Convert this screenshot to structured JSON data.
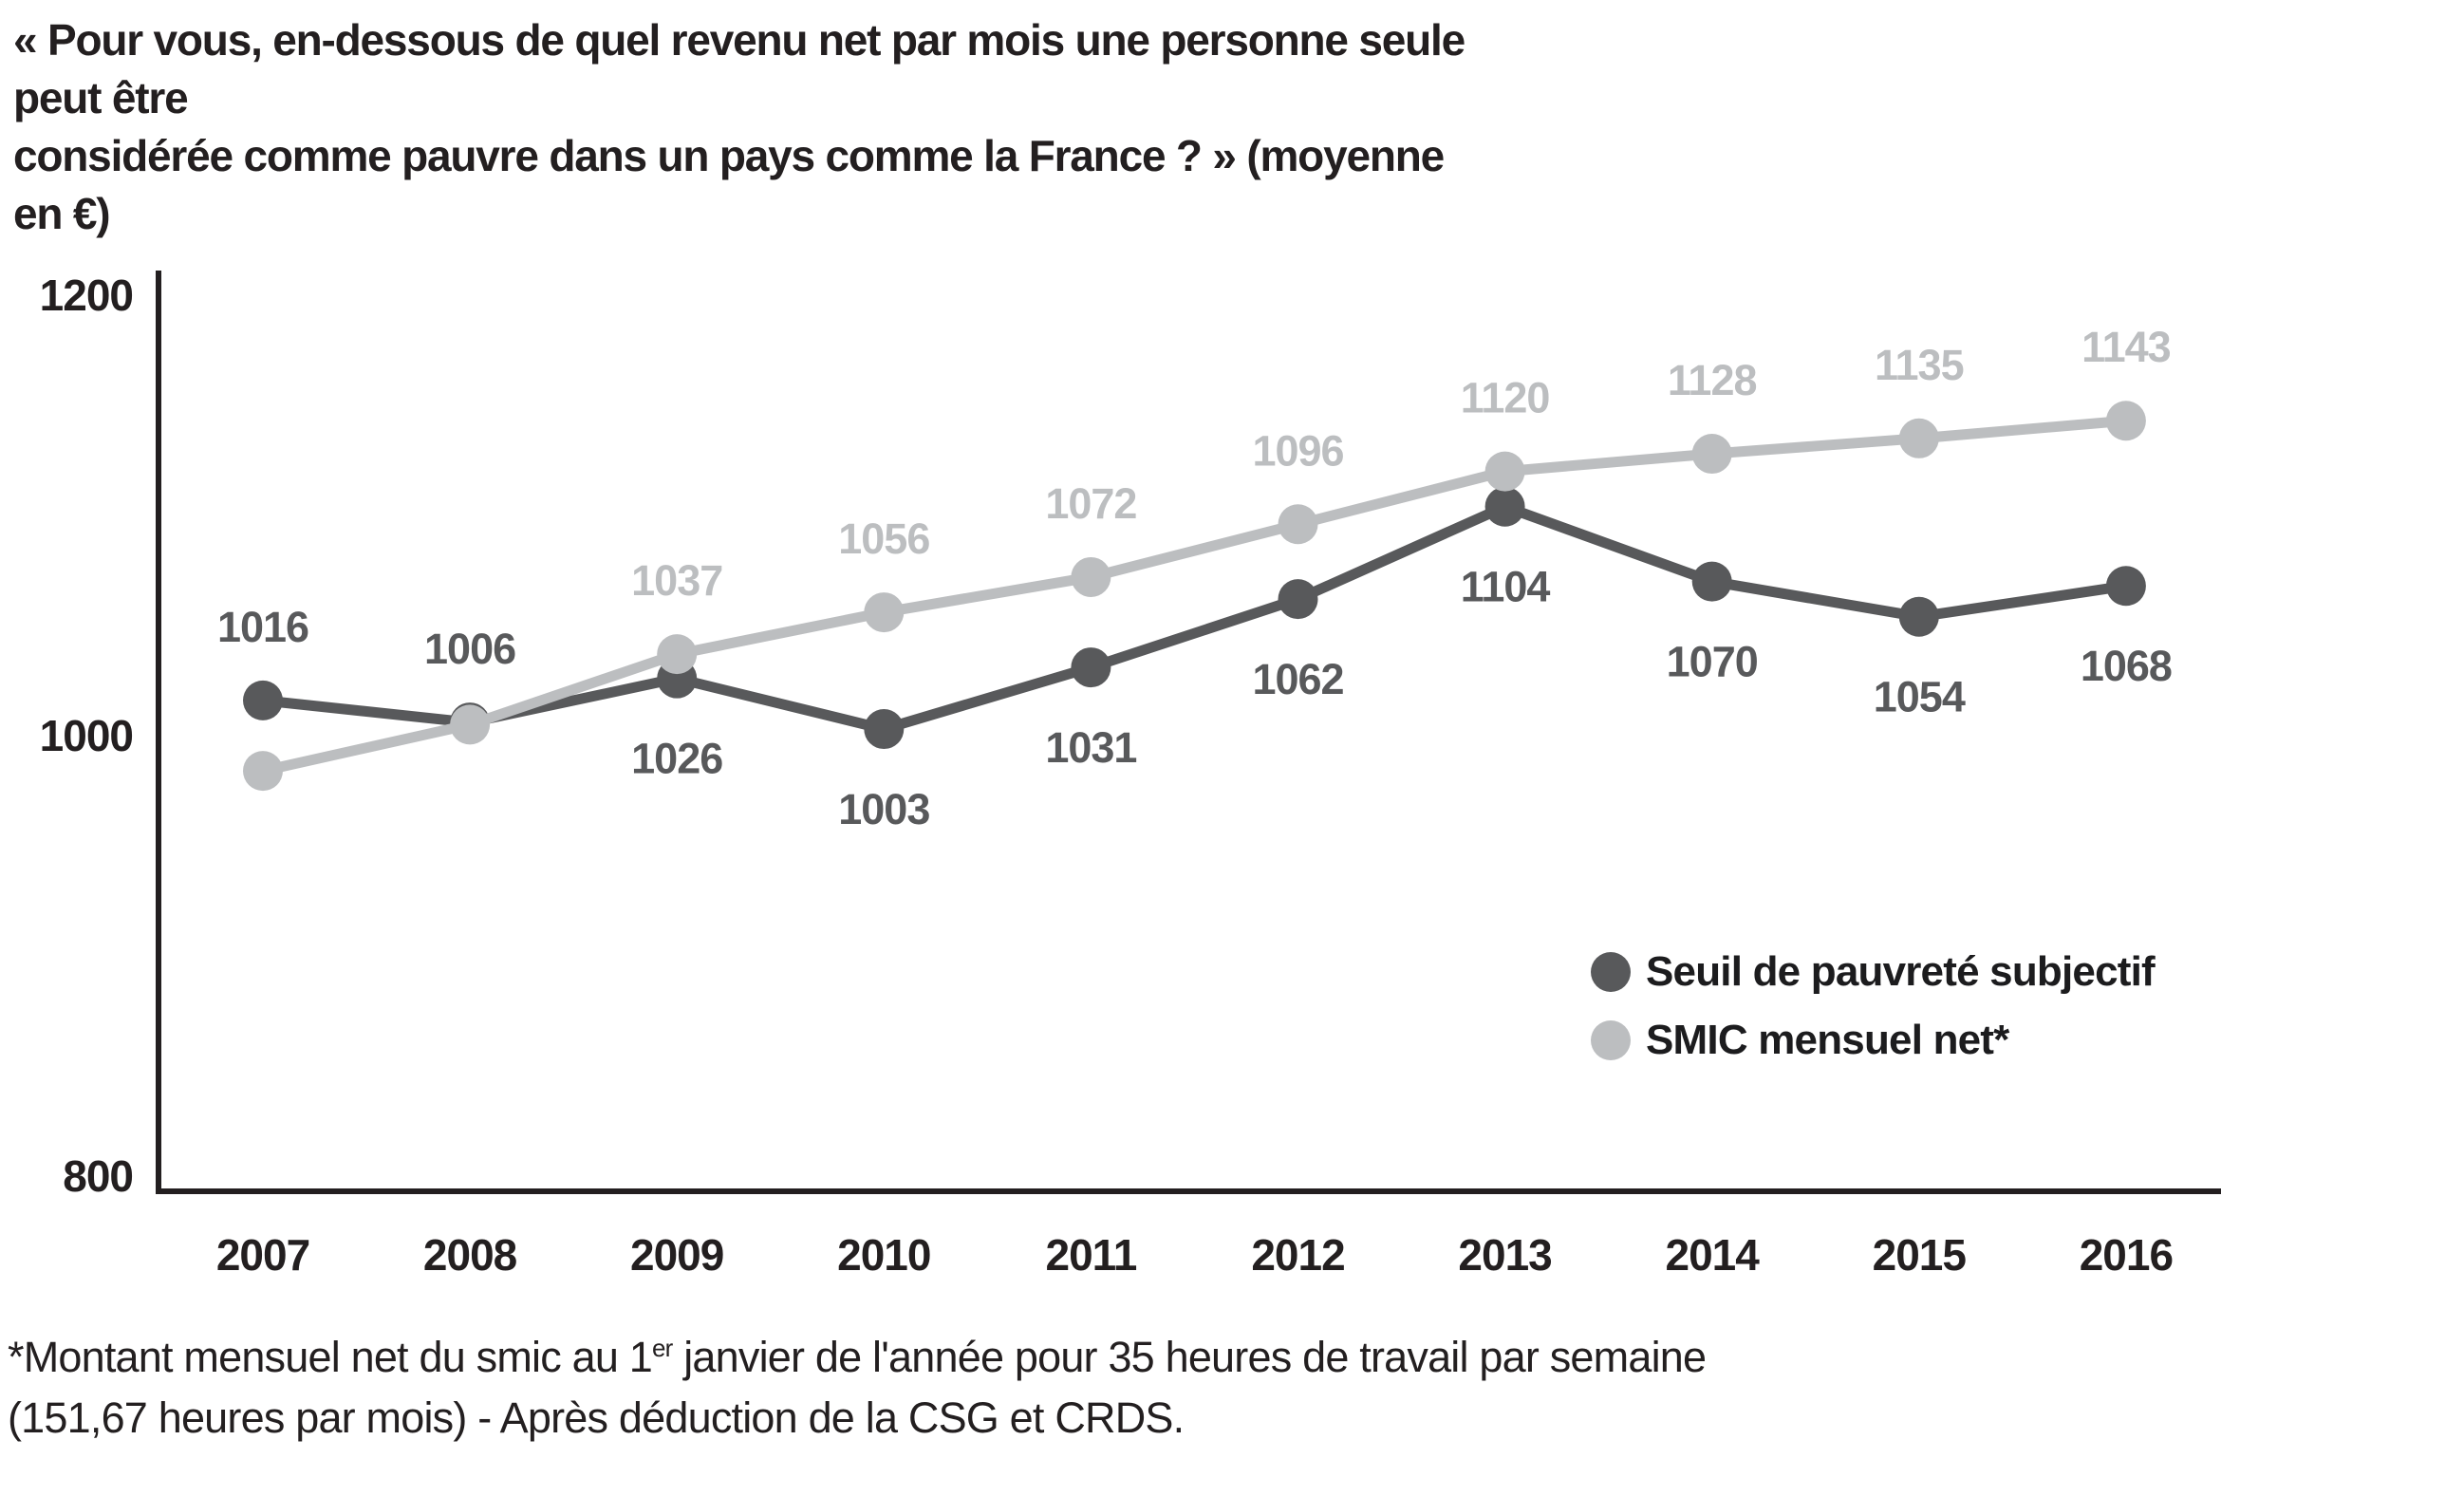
{
  "header": {
    "question_line1": "« Pour vous, en-dessous de quel revenu net par mois une personne seule peut être",
    "question_line2": "considérée comme pauvre dans un pays comme la France ? » (moyenne en €)"
  },
  "chart_data": {
    "type": "line",
    "title": "« Pour vous, en-dessous de quel revenu net par mois une personne seule peut être considérée comme pauvre dans un pays comme la France ? » (moyenne en €)",
    "categories": [
      "2007",
      "2008",
      "2009",
      "2010",
      "2011",
      "2012",
      "2013",
      "2014",
      "2015",
      "2016"
    ],
    "series": [
      {
        "name": "Seuil de pauvreté subjectif",
        "color": "#58595b",
        "values": [
          1016,
          1006,
          1026,
          1003,
          1031,
          1062,
          1104,
          1070,
          1054,
          1068
        ],
        "data_labels": [
          "1016",
          "1006",
          "1026",
          "1003",
          "1031",
          "1062",
          "1104",
          "1070",
          "1054",
          "1068"
        ],
        "label_positions": [
          "above",
          "above",
          "below",
          "below",
          "below",
          "below",
          "below",
          "below",
          "below",
          "below"
        ]
      },
      {
        "name": "SMIC mensuel net*",
        "color": "#bcbec0",
        "values": [
          984,
          1005,
          1037,
          1056,
          1072,
          1096,
          1120,
          1128,
          1135,
          1143
        ],
        "data_labels": [
          "",
          "",
          "1037",
          "1056",
          "1072",
          "1096",
          "1120",
          "1128",
          "1135",
          "1143"
        ],
        "label_positions": [
          "above",
          "above",
          "above",
          "above",
          "above",
          "above",
          "above",
          "above",
          "above",
          "above"
        ]
      }
    ],
    "ylim": [
      800,
      1200
    ],
    "yticks": [
      800,
      1000,
      1200
    ],
    "grid": false,
    "legend_position": "right-middle",
    "axis_color": "#231f20"
  },
  "footnote": {
    "line1_pre": "*Montant mensuel net du smic au 1",
    "line1_sup": "er",
    "line1_post": " janvier de l'année pour 35 heures de travail par semaine",
    "line2": "(151,67 heures par mois) - Après déduction de la CSG et CRDS."
  }
}
